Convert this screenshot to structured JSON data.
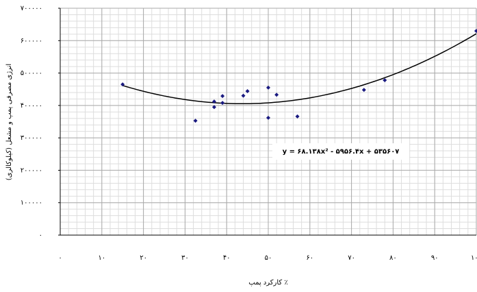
{
  "chart_data": {
    "type": "scatter",
    "x_label": "کارکرد پمپ ٪",
    "y_label": "انرژی مصرفی پمپ و مشعل (کیلوکالری)",
    "x": [
      15,
      32.5,
      37,
      37,
      39,
      39,
      44,
      45,
      50,
      50,
      52,
      57,
      73,
      78,
      100
    ],
    "values": [
      465000,
      353000,
      412000,
      395000,
      408000,
      429000,
      430000,
      444000,
      455000,
      362000,
      433000,
      366000,
      448000,
      478000,
      630000
    ],
    "color": "#1a1a80",
    "xlim": [
      0,
      100
    ],
    "ylim": [
      0,
      700000
    ],
    "xticks": [
      {
        "value": 0,
        "label": "۰"
      },
      {
        "value": 10,
        "label": "۱۰"
      },
      {
        "value": 20,
        "label": "۲۰"
      },
      {
        "value": 30,
        "label": "۳۰"
      },
      {
        "value": 40,
        "label": "۴۰"
      },
      {
        "value": 50,
        "label": "۵۰"
      },
      {
        "value": 60,
        "label": "۶۰"
      },
      {
        "value": 70,
        "label": "۷۰"
      },
      {
        "value": 80,
        "label": "۸۰"
      },
      {
        "value": 90,
        "label": "۹۰"
      },
      {
        "value": 100,
        "label": "۱۰۰"
      }
    ],
    "yticks": [
      {
        "value": 0,
        "label": "۰"
      },
      {
        "value": 100000,
        "label": "۱۰۰۰۰۰"
      },
      {
        "value": 200000,
        "label": "۲۰۰۰۰۰"
      },
      {
        "value": 300000,
        "label": "۳۰۰۰۰۰"
      },
      {
        "value": 400000,
        "label": "۴۰۰۰۰۰"
      },
      {
        "value": 500000,
        "label": "۵۰۰۰۰۰"
      },
      {
        "value": 600000,
        "label": "۶۰۰۰۰۰"
      },
      {
        "value": 700000,
        "label": "۷۰۰۰۰۰"
      }
    ],
    "grid": true,
    "trendline": {
      "coefficients": [
        68.138,
        -5956.4,
        535607
      ],
      "xrange": [
        15,
        100
      ],
      "label": "y = ۶۸.۱۳۸x² - ۵۹۵۶.۴x + ۵۳۵۶۰۷"
    }
  }
}
